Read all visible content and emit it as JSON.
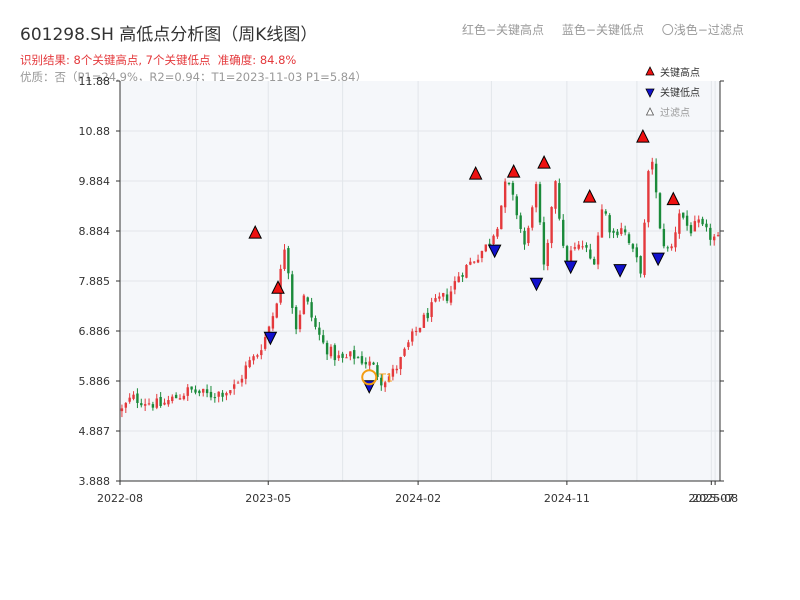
{
  "title": "601298.SH 高低点分析图（周K线图）",
  "subtitle_result": "识别结果: 8个关键高点, 7个关键低点",
  "subtitle_accuracy": "准确度: 84.8%",
  "subtitle_quality": "优质：否（P1=24.9%，R2=0.94；T1=2023-11-03 P1=5.84）",
  "top_legend": {
    "red": "红色−关键高点",
    "blue": "蓝色−关键低点",
    "light": "〇浅色−过滤点"
  },
  "colors": {
    "up": "#e4393c",
    "down": "#1a8a3a",
    "high_marker": "#ee1111",
    "low_marker": "#1111cc",
    "t1_marker": "#f39c12",
    "plot_bg": "#f5f7fa",
    "grid": "#e2e6ea"
  },
  "chart_data": {
    "type": "candlestick",
    "title": "601298.SH 高低点分析图（周K线图）",
    "ylim": [
      3.888,
      11.88
    ],
    "y_ticks": [
      "3.888",
      "4.887",
      "5.886",
      "6.886",
      "7.885",
      "8.884",
      "9.884",
      "10.88",
      "11.88"
    ],
    "x_ticks": [
      "2022-08",
      "2023-05",
      "2024-02",
      "2024-11",
      "2025-07",
      "2025-08"
    ],
    "legend": {
      "position": "top-right",
      "entries": [
        {
          "label": "关键高点",
          "marker": "high"
        },
        {
          "label": "关键低点",
          "marker": "low"
        },
        {
          "label": "过滤点",
          "marker": "filtered"
        }
      ]
    },
    "t1": {
      "label": "T1",
      "date": "2023-11-03",
      "price": 5.84
    },
    "anchor_prices": [
      5.3,
      5.55,
      5.5,
      5.45,
      5.4,
      5.5,
      5.6,
      5.7,
      5.65,
      5.6,
      5.65,
      5.7,
      5.8,
      6.2,
      6.4,
      6.8,
      7.4,
      8.7,
      6.9,
      7.6,
      7.0,
      6.6,
      6.4,
      6.3,
      6.4,
      6.3,
      6.2,
      5.9,
      6.0,
      6.3,
      6.7,
      7.0,
      7.3,
      7.5,
      7.6,
      8.0,
      8.2,
      8.4,
      8.6,
      9.0,
      9.9,
      9.3,
      8.5,
      9.9,
      7.9,
      10.1,
      8.3,
      8.5,
      8.6,
      8.2,
      9.4,
      8.8,
      9.0,
      8.5,
      8.1,
      10.6,
      8.8,
      8.4,
      9.3,
      8.9,
      9.0,
      8.8,
      8.7
    ],
    "candles": [],
    "key_highs": [
      {
        "date": "2023-04-07",
        "price": 8.68
      },
      {
        "date": "2023-05-19",
        "price": 7.58
      },
      {
        "date": "2024-05-17",
        "price": 9.86
      },
      {
        "date": "2024-07-26",
        "price": 9.9
      },
      {
        "date": "2024-09-20",
        "price": 10.08
      },
      {
        "date": "2024-12-13",
        "price": 9.4
      },
      {
        "date": "2025-03-21",
        "price": 10.6
      },
      {
        "date": "2025-05-16",
        "price": 9.35
      }
    ],
    "key_lows": [
      {
        "date": "2023-05-05",
        "price": 6.92
      },
      {
        "date": "2023-11-03",
        "price": 5.95
      },
      {
        "date": "2024-06-21",
        "price": 8.66
      },
      {
        "date": "2024-09-06",
        "price": 8.0
      },
      {
        "date": "2024-11-08",
        "price": 8.34
      },
      {
        "date": "2025-02-07",
        "price": 8.27
      },
      {
        "date": "2025-04-18",
        "price": 8.5
      }
    ]
  }
}
